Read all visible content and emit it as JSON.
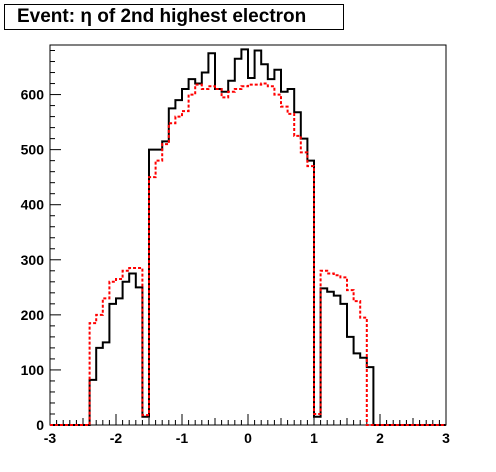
{
  "chart_data": {
    "type": "line",
    "title": "Event: η of 2nd highest electron",
    "xlabel": "",
    "ylabel": "",
    "xlim": [
      -3,
      3
    ],
    "ylim": [
      0,
      690
    ],
    "xticks": [
      "-3",
      "-2",
      "-1",
      "0",
      "1",
      "2",
      "3"
    ],
    "yticks": [
      "0",
      "100",
      "200",
      "300",
      "400",
      "500",
      "600"
    ],
    "bin_edges": [
      -3.0,
      -2.9,
      -2.8,
      -2.7,
      -2.6,
      -2.5,
      -2.4,
      -2.3,
      -2.2,
      -2.1,
      -2.0,
      -1.9,
      -1.8,
      -1.7,
      -1.6,
      -1.5,
      -1.4,
      -1.3,
      -1.2,
      -1.1,
      -1.0,
      -0.9,
      -0.8,
      -0.7,
      -0.6,
      -0.5,
      -0.4,
      -0.3,
      -0.2,
      -0.1,
      0.0,
      0.1,
      0.2,
      0.3,
      0.4,
      0.5,
      0.6,
      0.7,
      0.8,
      0.9,
      1.0,
      1.1,
      1.2,
      1.3,
      1.4,
      1.5,
      1.6,
      1.7,
      1.8,
      1.9,
      2.0,
      2.1,
      2.2,
      2.3,
      2.4,
      2.5,
      2.6,
      2.7,
      2.8,
      2.9,
      3.0
    ],
    "series": [
      {
        "style": "solid",
        "color": "#000000",
        "values": [
          0,
          0,
          0,
          0,
          0,
          0,
          82,
          140,
          150,
          220,
          230,
          260,
          275,
          250,
          15,
          500,
          500,
          515,
          575,
          590,
          610,
          628,
          620,
          640,
          675,
          610,
          605,
          625,
          665,
          682,
          630,
          680,
          655,
          628,
          645,
          605,
          610,
          568,
          520,
          480,
          15,
          248,
          242,
          235,
          220,
          160,
          130,
          122,
          105,
          0,
          0,
          0,
          0,
          0,
          0,
          0,
          0,
          0,
          0,
          0
        ]
      },
      {
        "style": "dotted",
        "color": "#ff0000",
        "values": [
          0,
          0,
          0,
          0,
          0,
          0,
          185,
          200,
          230,
          260,
          265,
          280,
          285,
          285,
          18,
          450,
          480,
          510,
          548,
          560,
          570,
          600,
          618,
          610,
          615,
          610,
          595,
          605,
          610,
          615,
          618,
          618,
          620,
          615,
          600,
          578,
          565,
          525,
          495,
          470,
          20,
          280,
          275,
          272,
          268,
          245,
          225,
          195,
          0,
          0,
          0,
          0,
          0,
          0,
          0,
          0,
          0,
          0,
          0,
          0
        ]
      }
    ]
  }
}
